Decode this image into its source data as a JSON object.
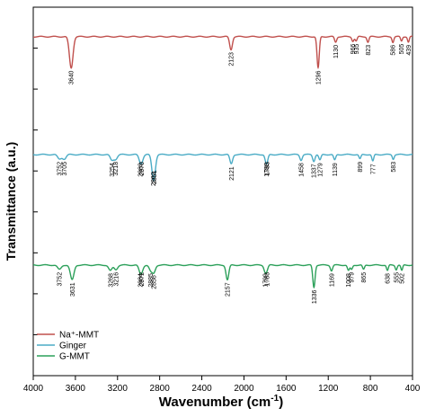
{
  "chart_data": {
    "type": "line",
    "xlabel": "Wavenumber (cm",
    "xlabel_sup": "-1",
    "xlabel_end": ")",
    "ylabel": "Transmittance (a.u.)",
    "xlim": [
      4000,
      400
    ],
    "x_reversed": true,
    "x_ticks": [
      4000,
      3600,
      3200,
      2800,
      2400,
      2000,
      1600,
      1200,
      800,
      400
    ],
    "y_tick_labels": "none",
    "legend_position": "bottom-left",
    "series": [
      {
        "name": "Na⁺-MMT",
        "color": "#c0504d",
        "baseline": 0.92,
        "peaks": [
          {
            "x": 3640,
            "depth": 0.085
          },
          {
            "x": 2123,
            "depth": 0.035
          },
          {
            "x": 1296,
            "depth": 0.085
          },
          {
            "x": 1130,
            "depth": 0.015
          },
          {
            "x": 966,
            "depth": 0.012
          },
          {
            "x": 935,
            "depth": 0.012
          },
          {
            "x": 823,
            "depth": 0.015
          },
          {
            "x": 586,
            "depth": 0.015
          },
          {
            "x": 505,
            "depth": 0.012
          },
          {
            "x": 439,
            "depth": 0.015
          }
        ],
        "labels": [
          "3640",
          "2123",
          "1296",
          "1130",
          "966",
          "935",
          "823",
          "586",
          "505",
          "439"
        ]
      },
      {
        "name": "Ginger",
        "color": "#4bacc6",
        "baseline": 0.6,
        "peaks": [
          {
            "x": 3752,
            "depth": 0.012
          },
          {
            "x": 3705,
            "depth": 0.012
          },
          {
            "x": 3254,
            "depth": 0.015
          },
          {
            "x": 3218,
            "depth": 0.012
          },
          {
            "x": 2983,
            "depth": 0.015
          },
          {
            "x": 2970,
            "depth": 0.012
          },
          {
            "x": 2863,
            "depth": 0.04
          },
          {
            "x": 2851,
            "depth": 0.035
          },
          {
            "x": 2121,
            "depth": 0.025
          },
          {
            "x": 1788,
            "depth": 0.015
          },
          {
            "x": 1783,
            "depth": 0.012
          },
          {
            "x": 1458,
            "depth": 0.015
          },
          {
            "x": 1337,
            "depth": 0.018
          },
          {
            "x": 1279,
            "depth": 0.015
          },
          {
            "x": 1139,
            "depth": 0.015
          },
          {
            "x": 899,
            "depth": 0.012
          },
          {
            "x": 777,
            "depth": 0.018
          },
          {
            "x": 583,
            "depth": 0.012
          }
        ],
        "labels": [
          "3752",
          "3705",
          "3254",
          "3218",
          "2983",
          "2970",
          "2863",
          "2851",
          "2121",
          "1788",
          "1783",
          "1458",
          "1337",
          "1279",
          "1139",
          "899",
          "777",
          "583"
        ]
      },
      {
        "name": "G-MMT",
        "color": "#2ca05a",
        "baseline": 0.3,
        "peaks": [
          {
            "x": 3752,
            "depth": 0.012
          },
          {
            "x": 3631,
            "depth": 0.04
          },
          {
            "x": 3268,
            "depth": 0.015
          },
          {
            "x": 3216,
            "depth": 0.012
          },
          {
            "x": 2984,
            "depth": 0.015
          },
          {
            "x": 2972,
            "depth": 0.012
          },
          {
            "x": 2885,
            "depth": 0.015
          },
          {
            "x": 2856,
            "depth": 0.02
          },
          {
            "x": 2157,
            "depth": 0.04
          },
          {
            "x": 1799,
            "depth": 0.015
          },
          {
            "x": 1783,
            "depth": 0.012
          },
          {
            "x": 1336,
            "depth": 0.06
          },
          {
            "x": 1169,
            "depth": 0.015
          },
          {
            "x": 1008,
            "depth": 0.015
          },
          {
            "x": 979,
            "depth": 0.012
          },
          {
            "x": 865,
            "depth": 0.012
          },
          {
            "x": 638,
            "depth": 0.015
          },
          {
            "x": 555,
            "depth": 0.012
          },
          {
            "x": 502,
            "depth": 0.015
          }
        ],
        "labels": [
          "3752",
          "3631",
          "3268",
          "3216",
          "2984",
          "2972",
          "2885",
          "2856",
          "2157",
          "1799",
          "1783",
          "1336",
          "1169",
          "1008",
          "979",
          "865",
          "638",
          "555",
          "502"
        ]
      }
    ]
  }
}
